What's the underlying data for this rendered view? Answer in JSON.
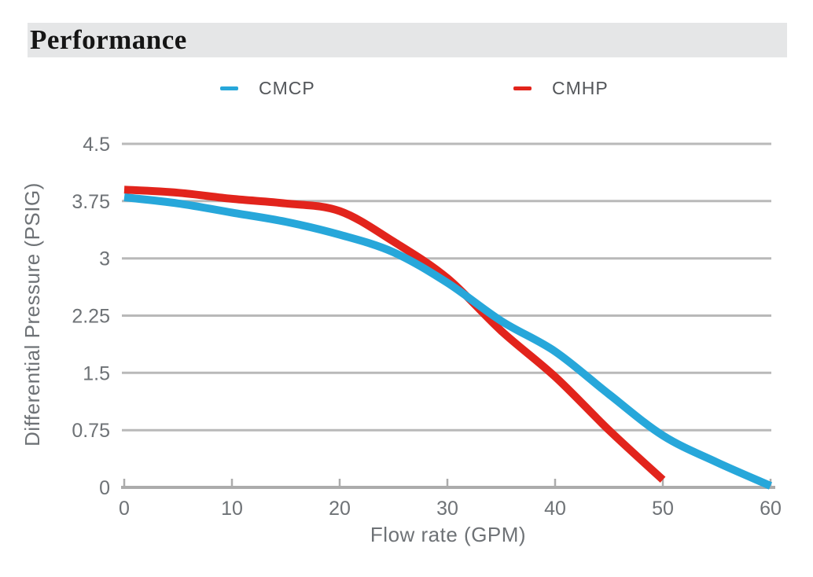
{
  "chart_data": {
    "type": "line",
    "title": "Performance",
    "xlabel": "Flow rate (GPM)",
    "ylabel": "Differential Pressure (PSIG)",
    "xlim": [
      0,
      60
    ],
    "ylim": [
      0,
      4.5
    ],
    "grid": "horizontal",
    "legend_position": "top",
    "x": [
      0,
      5,
      10,
      15,
      20,
      25,
      30,
      35,
      40,
      45,
      50,
      55,
      60
    ],
    "series": [
      {
        "name": "CMCP",
        "color": "#27A7DA",
        "values": [
          3.8,
          3.72,
          3.6,
          3.48,
          3.31,
          3.08,
          2.68,
          2.18,
          1.78,
          1.22,
          0.68,
          0.33,
          0.02
        ]
      },
      {
        "name": "CMHP",
        "color": "#E2241C",
        "values": [
          3.9,
          3.86,
          3.78,
          3.72,
          3.62,
          3.22,
          2.74,
          2.05,
          1.45,
          0.75,
          0.1,
          null,
          null
        ]
      }
    ],
    "x_ticks": [
      {
        "value": 0,
        "label": "0"
      },
      {
        "value": 10,
        "label": "10"
      },
      {
        "value": 20,
        "label": "20"
      },
      {
        "value": 30,
        "label": "30"
      },
      {
        "value": 40,
        "label": "40"
      },
      {
        "value": 50,
        "label": "50"
      },
      {
        "value": 60,
        "label": "60"
      }
    ],
    "y_ticks": [
      {
        "value": 0,
        "label": "0"
      },
      {
        "value": 0.75,
        "label": "0.75"
      },
      {
        "value": 1.5,
        "label": "1.5"
      },
      {
        "value": 2.25,
        "label": "2.25"
      },
      {
        "value": 3,
        "label": "3"
      },
      {
        "value": 3.75,
        "label": "3.75"
      },
      {
        "value": 4.5,
        "label": "4.5"
      }
    ]
  },
  "theme": {
    "grid_color": "#B9B9B9",
    "axis_color": "#ACACAC",
    "tick_label_color": "#6E7276",
    "axis_title_color": "#6E7276",
    "legend_text_color": "#53565A",
    "banner_background": "#E5E6E7",
    "title_color": "#151515"
  }
}
